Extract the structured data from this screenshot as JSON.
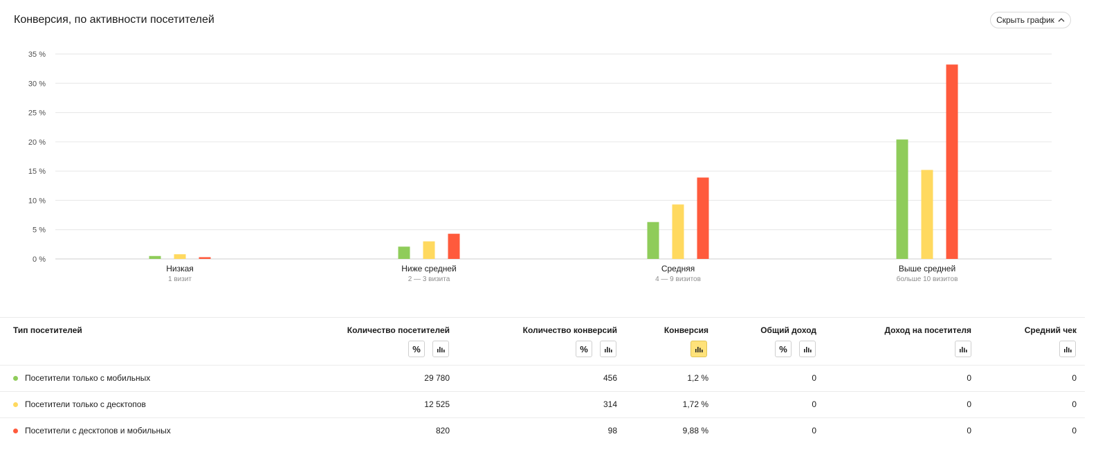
{
  "title": "Конверсия, по активности посетителей",
  "hide_chart_label": "Скрыть график",
  "colors": {
    "mobile": "#8fcc5a",
    "desktop": "#ffd95f",
    "both": "#ff5a3c"
  },
  "chart_data": {
    "type": "bar",
    "categories": [
      "Низкая",
      "Ниже средней",
      "Средняя",
      "Выше средней"
    ],
    "category_sublabels": [
      "1 визит",
      "2 — 3 визита",
      "4 — 9 визитов",
      "больше 10 визитов"
    ],
    "y_ticks": [
      "0 %",
      "5 %",
      "10 %",
      "15 %",
      "20 %",
      "25 %",
      "30 %",
      "35 %"
    ],
    "ylim": [
      0,
      35
    ],
    "grid": true,
    "series": [
      {
        "name": "Посетители только с мобильных",
        "color": "#8fcc5a",
        "values": [
          0.5,
          2.1,
          6.3,
          20.4
        ]
      },
      {
        "name": "Посетители только с десктопов",
        "color": "#ffd95f",
        "values": [
          0.8,
          3.0,
          9.3,
          15.2
        ]
      },
      {
        "name": "Посетители с десктопов и мобильных",
        "color": "#ff5a3c",
        "values": [
          0.3,
          4.3,
          13.9,
          33.2
        ]
      }
    ]
  },
  "table": {
    "headers": {
      "type": "Тип посетителей",
      "visitors": "Количество посетителей",
      "conversions": "Количество конверсий",
      "conversion": "Конверсия",
      "revenue": "Общий доход",
      "revenue_per_visitor": "Доход на посетителя",
      "avg_check": "Средний чек"
    },
    "percent_icon": "%",
    "rows": [
      {
        "name": "Посетители только с мобильных",
        "color": "#8fcc5a",
        "visitors": "29 780",
        "conversions": "456",
        "conversion": "1,2 %",
        "revenue": "0",
        "revenue_per_visitor": "0",
        "avg_check": "0"
      },
      {
        "name": "Посетители только с десктопов",
        "color": "#ffd95f",
        "visitors": "12 525",
        "conversions": "314",
        "conversion": "1,72 %",
        "revenue": "0",
        "revenue_per_visitor": "0",
        "avg_check": "0"
      },
      {
        "name": "Посетители с десктопов и мобильных",
        "color": "#ff5a3c",
        "visitors": "820",
        "conversions": "98",
        "conversion": "9,88 %",
        "revenue": "0",
        "revenue_per_visitor": "0",
        "avg_check": "0"
      }
    ]
  }
}
